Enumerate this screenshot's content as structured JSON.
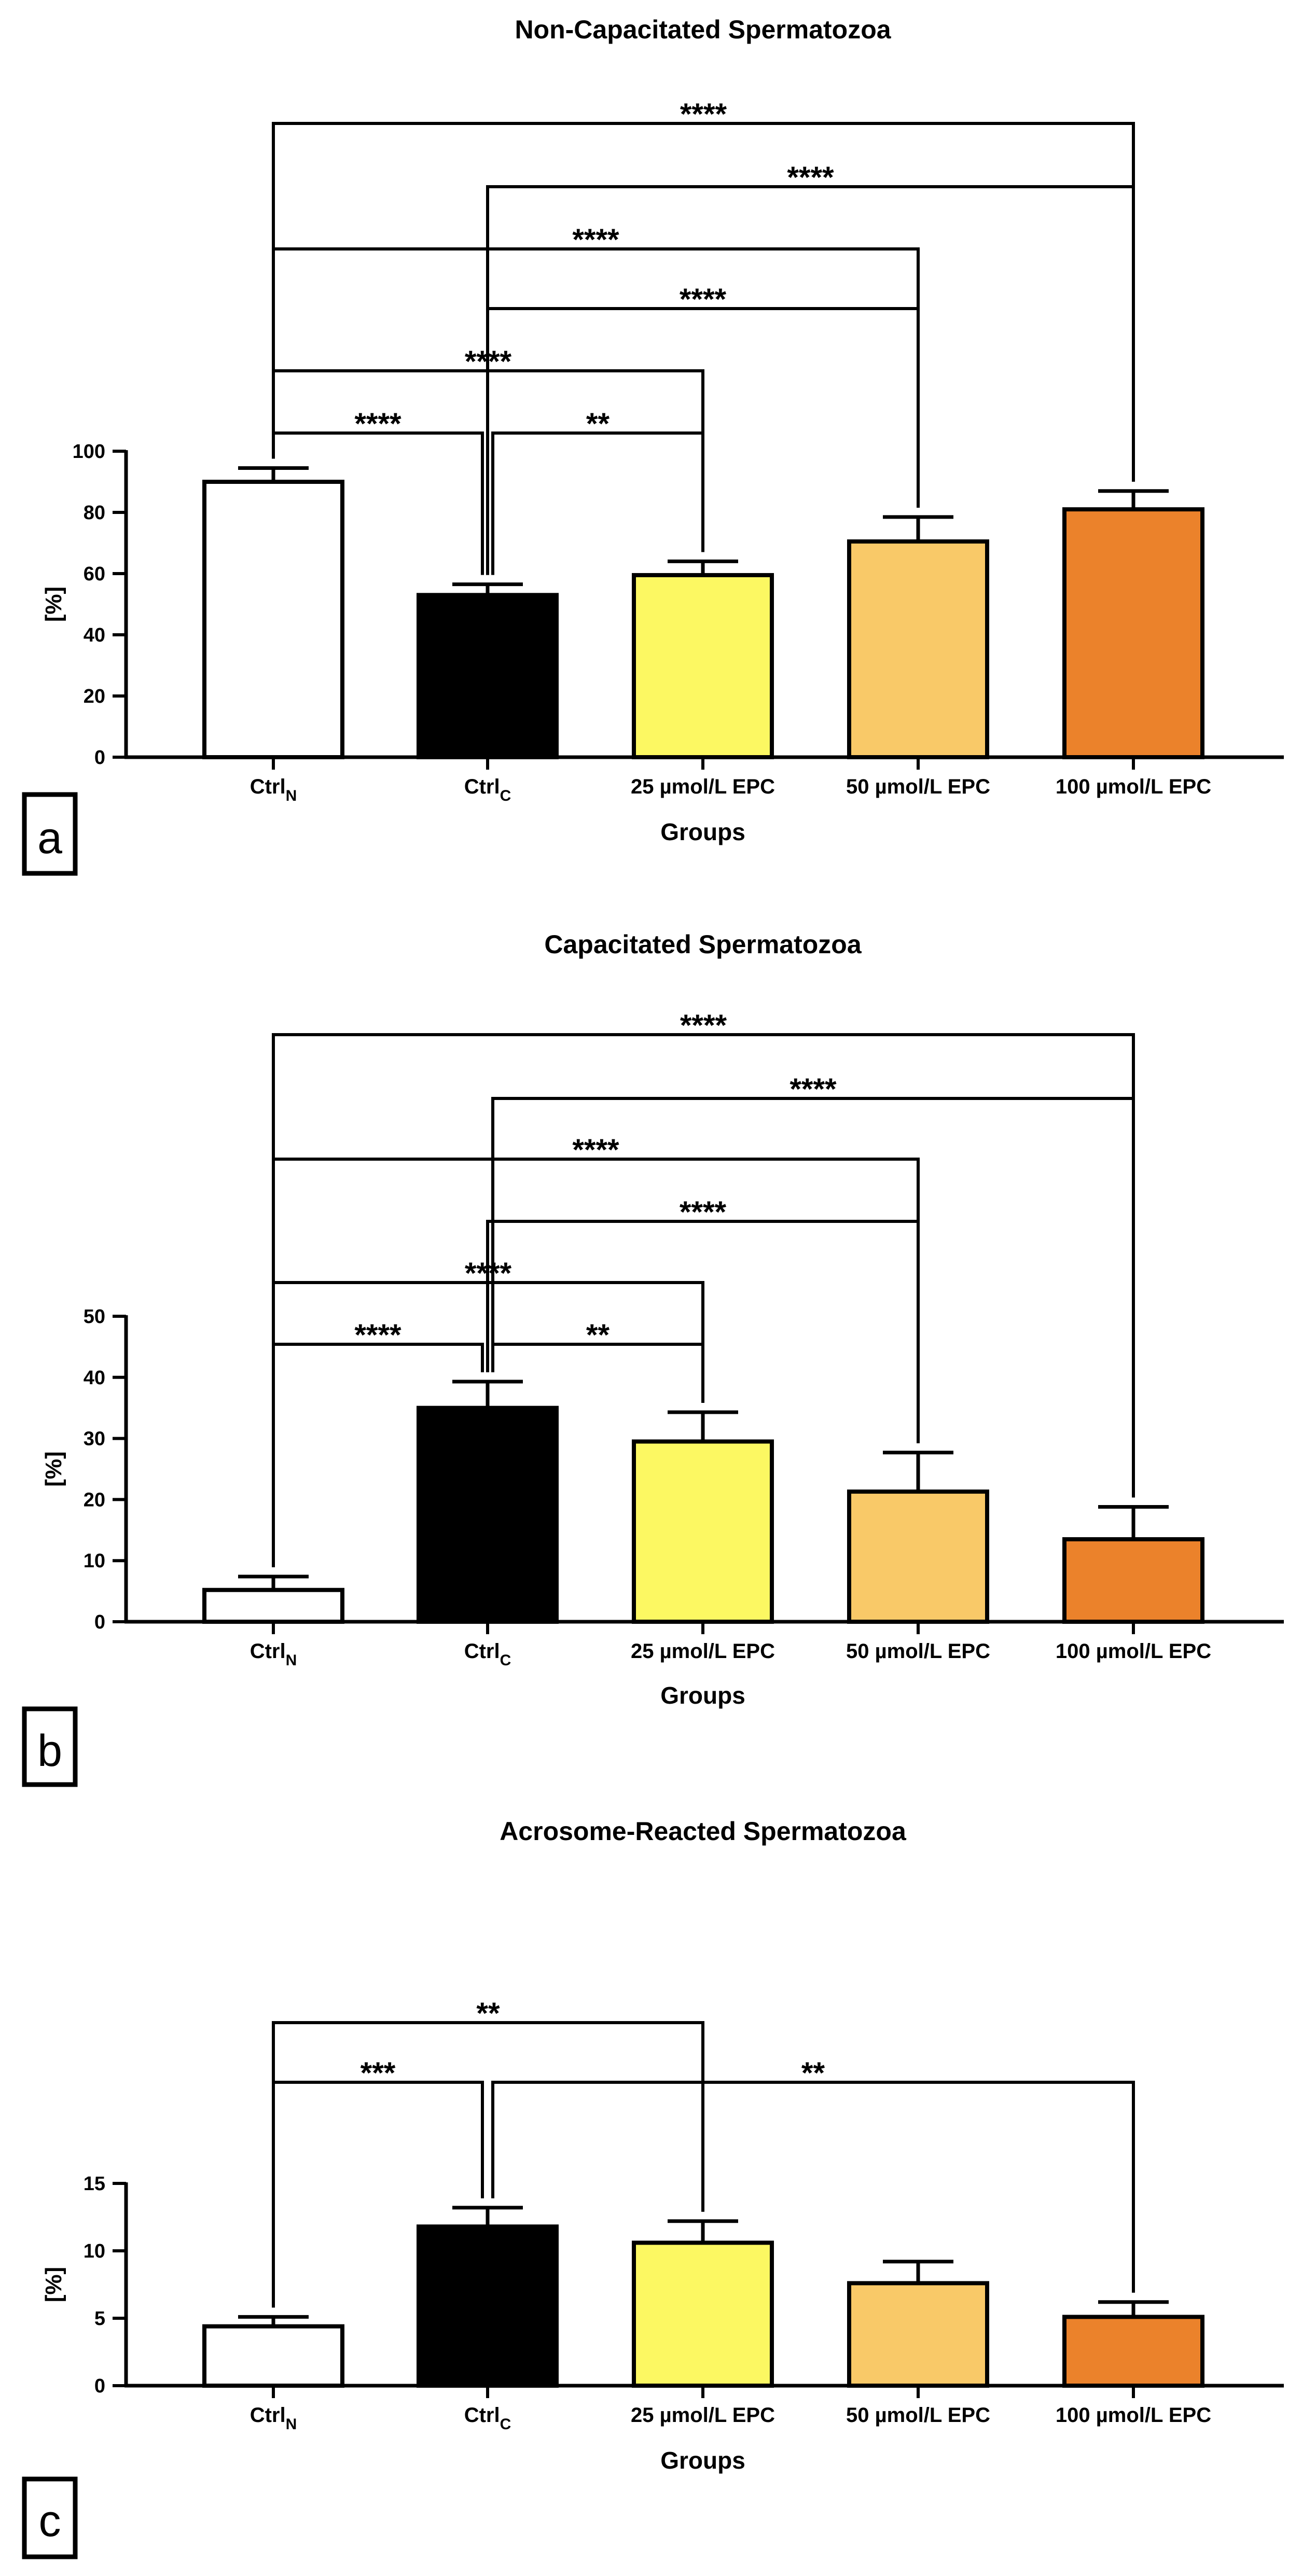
{
  "colors": {
    "ctrl_n": "#ffffff",
    "ctrl_c": "#000000",
    "epc_25": "#fcf862",
    "epc_50": "#f9c968",
    "epc_100": "#eb822b",
    "stroke": "#000000"
  },
  "chart_data": [
    {
      "type": "bar",
      "panel_label": "a",
      "title": "Non-Capacitated Spermatozoa",
      "xlabel": "Groups",
      "ylabel": "[%]",
      "ylim": [
        0,
        100
      ],
      "yticks": [
        0,
        20,
        40,
        60,
        80,
        100
      ],
      "categories": [
        {
          "main": "Ctrl",
          "sub": "N"
        },
        {
          "main": "Ctrl",
          "sub": "C"
        },
        {
          "main": "25 µmol/L EPC",
          "sub": ""
        },
        {
          "main": "50 µmol/L EPC",
          "sub": ""
        },
        {
          "main": "100 µmol/L EPC",
          "sub": ""
        }
      ],
      "values": [
        90,
        53,
        59.5,
        70.5,
        81
      ],
      "errors": [
        4.5,
        3.5,
        4.5,
        8,
        6
      ],
      "significance": [
        {
          "from": 0,
          "to": 4,
          "label": "****"
        },
        {
          "from": 1,
          "to": 4,
          "label": "****"
        },
        {
          "from": 0,
          "to": 3,
          "label": "****"
        },
        {
          "from": 1,
          "to": 3,
          "label": "****"
        },
        {
          "from": 0,
          "to": 2,
          "label": "****"
        },
        {
          "from": 0,
          "to": 1,
          "label": "****"
        },
        {
          "from": 1,
          "to": 2,
          "label": "**"
        }
      ]
    },
    {
      "type": "bar",
      "panel_label": "b",
      "title": "Capacitated Spermatozoa",
      "xlabel": "Groups",
      "ylabel": "[%]",
      "ylim": [
        0,
        50
      ],
      "yticks": [
        0,
        10,
        20,
        30,
        40,
        50
      ],
      "categories": [
        {
          "main": "Ctrl",
          "sub": "N"
        },
        {
          "main": "Ctrl",
          "sub": "C"
        },
        {
          "main": "25 µmol/L EPC",
          "sub": ""
        },
        {
          "main": "50 µmol/L EPC",
          "sub": ""
        },
        {
          "main": "100 µmol/L EPC",
          "sub": ""
        }
      ],
      "values": [
        5.2,
        35,
        29.5,
        21.3,
        13.5
      ],
      "errors": [
        2.2,
        4.3,
        4.8,
        6.4,
        5.3
      ],
      "significance": [
        {
          "from": 0,
          "to": 4,
          "label": "****"
        },
        {
          "from": 1,
          "to": 4,
          "label": "****"
        },
        {
          "from": 0,
          "to": 3,
          "label": "****"
        },
        {
          "from": 1,
          "to": 3,
          "label": "****"
        },
        {
          "from": 0,
          "to": 2,
          "label": "****"
        },
        {
          "from": 0,
          "to": 1,
          "label": "****"
        },
        {
          "from": 1,
          "to": 2,
          "label": "**"
        }
      ]
    },
    {
      "type": "bar",
      "panel_label": "c",
      "title": "Acrosome-Reacted Spermatozoa",
      "xlabel": "Groups",
      "ylabel": "[%]",
      "ylim": [
        0,
        15
      ],
      "yticks": [
        0,
        5,
        10,
        15
      ],
      "categories": [
        {
          "main": "Ctrl",
          "sub": "N"
        },
        {
          "main": "Ctrl",
          "sub": "C"
        },
        {
          "main": "25 µmol/L EPC",
          "sub": ""
        },
        {
          "main": "50 µmol/L EPC",
          "sub": ""
        },
        {
          "main": "100 µmol/L EPC",
          "sub": ""
        }
      ],
      "values": [
        4.4,
        11.8,
        10.6,
        7.6,
        5.1
      ],
      "errors": [
        0.7,
        1.4,
        1.6,
        1.6,
        1.1
      ],
      "significance": [
        {
          "from": 0,
          "to": 2,
          "label": "**"
        },
        {
          "from": 0,
          "to": 1,
          "label": "***"
        },
        {
          "from": 1,
          "to": 4,
          "label": "**"
        }
      ]
    }
  ]
}
